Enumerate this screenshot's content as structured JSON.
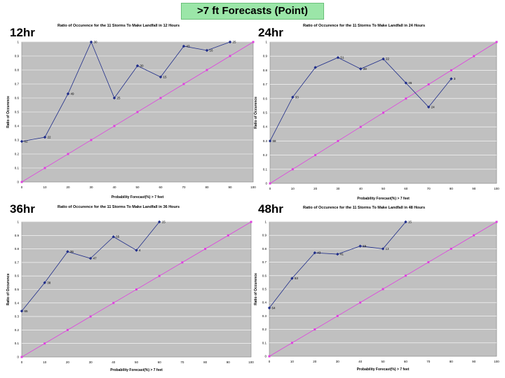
{
  "title": ">7 ft Forecasts (Point)",
  "colors": {
    "series": "#1f2d8a",
    "reference": "#e040e0",
    "plot_bg": "#c0c0c0",
    "title_bg": "#9be6a8"
  },
  "chart_data": [
    {
      "type": "line",
      "panel_label": "12hr",
      "title": "Ratio of Occurence for the 11 Storms To Make Landfall in 12 Hours",
      "xlabel": "Probability Forecast(%) > 7 feet",
      "ylabel": "Ratio of Occurence",
      "xlim": [
        0,
        100
      ],
      "ylim": [
        0,
        1
      ],
      "xticks": [
        "0",
        "10",
        "20",
        "30",
        "40",
        "50",
        "60",
        "70",
        "80",
        "90",
        "100"
      ],
      "yticks": [
        "0",
        "0.1",
        "0.2",
        "0.3",
        "0.4",
        "0.5",
        "0.6",
        "0.7",
        "0.8",
        "0.9",
        "1"
      ],
      "grid": "horizontal",
      "series": [
        {
          "x": [
            0,
            10,
            20,
            30,
            40,
            50,
            60,
            70,
            80,
            90
          ],
          "y": [
            0.29,
            0.32,
            0.63,
            1.0,
            0.6,
            0.83,
            0.75,
            0.97,
            0.94,
            1.0
          ],
          "labels": [
            "62",
            "22",
            "49",
            "30",
            "25",
            "30",
            "15",
            "43",
            "16",
            "25"
          ]
        },
        {
          "x": [
            0,
            100
          ],
          "y": [
            0,
            1
          ],
          "labels": []
        }
      ]
    },
    {
      "type": "line",
      "panel_label": "24hr",
      "title": "Ratio of Occurence for the 11 Storms To Make Landfall in 24 Hours",
      "xlabel": "Probability Forecast(%) > 7 feet",
      "ylabel": "Ratio of Occurence",
      "xlim": [
        0,
        100
      ],
      "ylim": [
        0,
        1
      ],
      "xticks": [
        "0",
        "10",
        "20",
        "30",
        "40",
        "50",
        "60",
        "70",
        "80",
        "90",
        "100"
      ],
      "yticks": [
        "0",
        "0.1",
        "0.2",
        "0.3",
        "0.4",
        "0.5",
        "0.6",
        "0.7",
        "0.8",
        "0.9",
        "1"
      ],
      "grid": "horizontal",
      "series": [
        {
          "x": [
            0,
            10,
            20,
            30,
            40,
            50,
            60,
            70,
            80
          ],
          "y": [
            0.3,
            0.61,
            0.82,
            0.89,
            0.81,
            0.88,
            0.71,
            0.54,
            0.74
          ],
          "labels": [
            "68",
            "33",
            "",
            "51",
            "28",
            "22",
            "45",
            "24",
            "3"
          ]
        },
        {
          "x": [
            0,
            100
          ],
          "y": [
            0,
            1
          ],
          "labels": []
        }
      ]
    },
    {
      "type": "line",
      "panel_label": "36hr",
      "title": "Ratio of Occurence for the 11 Storms To Make Landfall in 36 Hours",
      "xlabel": "Probability Forecast(%) > 7 feet",
      "ylabel": "Ratio of Occurence",
      "xlim": [
        0,
        100
      ],
      "ylim": [
        0,
        1
      ],
      "xticks": [
        "0",
        "10",
        "20",
        "30",
        "40",
        "50",
        "60",
        "70",
        "80",
        "90",
        "100"
      ],
      "yticks": [
        "0",
        "0.1",
        "0.2",
        "0.3",
        "0.4",
        "0.5",
        "0.6",
        "0.7",
        "0.8",
        "0.9",
        "1"
      ],
      "grid": "horizontal",
      "series": [
        {
          "x": [
            0,
            10,
            20,
            30,
            40,
            50,
            60
          ],
          "y": [
            0.34,
            0.55,
            0.78,
            0.73,
            0.89,
            0.79,
            1.0
          ],
          "labels": [
            "65",
            "38",
            "36",
            "47",
            "55",
            "4",
            "15"
          ]
        },
        {
          "x": [
            0,
            100
          ],
          "y": [
            0,
            1
          ],
          "labels": []
        }
      ]
    },
    {
      "type": "line",
      "panel_label": "48hr",
      "title": "Ratio of Occurence for the 11 Storms To Make Landfall in 48 Hours",
      "xlabel": "Probability Forecast(%) > 7 feet",
      "ylabel": "Ratio of Occurence",
      "xlim": [
        0,
        100
      ],
      "ylim": [
        0,
        1
      ],
      "xticks": [
        "0",
        "10",
        "20",
        "30",
        "40",
        "50",
        "60",
        "70",
        "80",
        "90",
        "100"
      ],
      "yticks": [
        "0",
        "0.1",
        "0.2",
        "0.3",
        "0.4",
        "0.5",
        "0.6",
        "0.7",
        "0.8",
        "0.9",
        "1"
      ],
      "grid": "horizontal",
      "series": [
        {
          "x": [
            0,
            10,
            20,
            30,
            40,
            50,
            60
          ],
          "y": [
            0.36,
            0.58,
            0.77,
            0.76,
            0.82,
            0.8,
            1.0
          ],
          "labels": [
            "64",
            "53",
            "43",
            "41",
            "15",
            "13",
            "15"
          ]
        },
        {
          "x": [
            0,
            100
          ],
          "y": [
            0,
            1
          ],
          "labels": []
        }
      ]
    }
  ]
}
